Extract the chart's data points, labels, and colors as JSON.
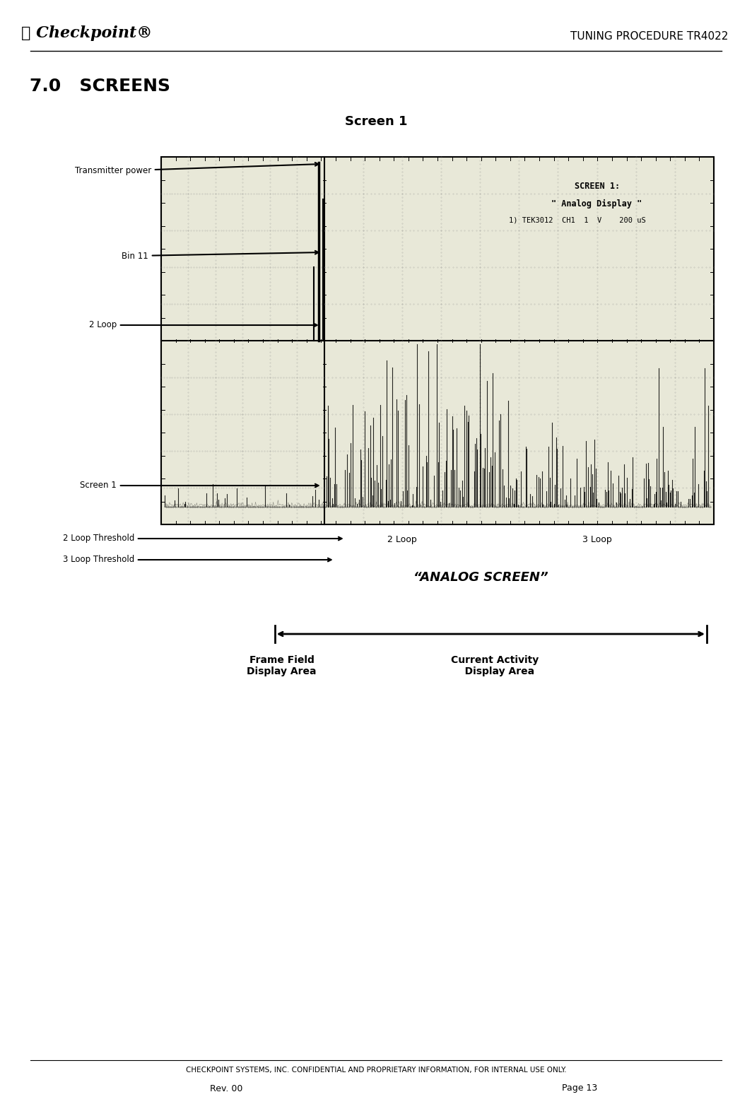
{
  "page_title": "TUNING PROCEDURE TR4022",
  "section_title": "7.0   SCREENS",
  "screen_title": "Screen 1",
  "screen_info_line1": "SCREEN 1:",
  "screen_info_line2": "\" Analog Display \"",
  "screen_info_line3": "1) TEK3012  CH1  1  V    200 uS",
  "label_transmitter": "Transmitter power",
  "label_bin11": "Bin 11",
  "label_2loop": "2 Loop",
  "label_screen1": "Screen 1",
  "label_2loop_threshold": "2 Loop Threshold",
  "label_3loop_threshold": "3 Loop Threshold",
  "label_2loop_xaxis": "2 Loop",
  "label_3loop_xaxis": "3 Loop",
  "analog_screen_label": "“ANALOG SCREEN”",
  "frame_field_label": "Frame Field\nDisplay Area",
  "current_activity_label": "Current Activity\n   Display Area",
  "footer_confidential": "CHECKPOINT SYSTEMS, INC. CONFIDENTIAL AND PROPRIETARY INFORMATION, FOR INTERNAL USE ONLY.",
  "footer_rev": "Rev. 00",
  "footer_page": "Page 13",
  "bg_color": "#ffffff",
  "text_color": "#000000",
  "screen_bg": "#f8f8f0"
}
